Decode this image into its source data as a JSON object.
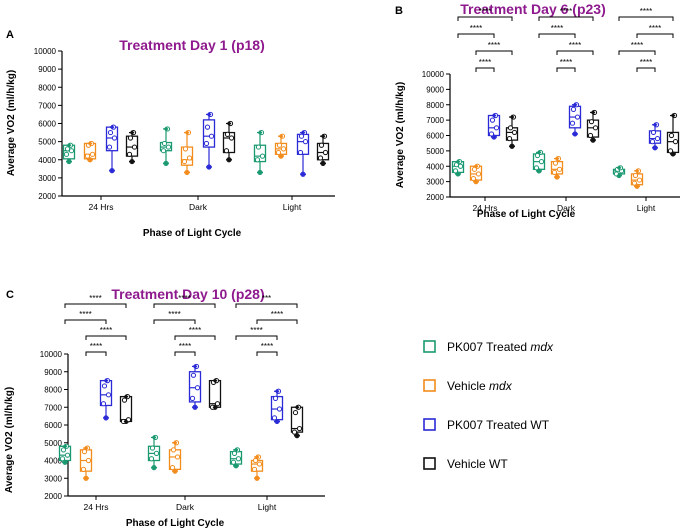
{
  "figure": {
    "legend": [
      {
        "label": "PK007 Treated ",
        "emph": "mdx",
        "color": "#1a9970"
      },
      {
        "label": "Vehicle ",
        "emph": "mdx",
        "color": "#f28c1c"
      },
      {
        "label": "PK007 Treated WT",
        "emph": "",
        "color": "#2a2ad6"
      },
      {
        "label": "Vehicle WT",
        "emph": "",
        "color": "#111111"
      }
    ]
  },
  "chart_data": [
    {
      "panel": "A",
      "type": "box",
      "title": "Treatment Day 1 (p18)",
      "xlabel": "Phase of Light Cycle",
      "ylabel": "Average VO2 (ml/h/kg)",
      "ylim": [
        2000,
        10000
      ],
      "yticks": [
        2000,
        3000,
        4000,
        5000,
        6000,
        7000,
        8000,
        9000,
        10000
      ],
      "categories": [
        "24 Hrs",
        "Dark",
        "Light"
      ],
      "series": [
        {
          "name": "PK007 Treated mdx",
          "boxes": [
            {
              "min": 3900,
              "q1": 4050,
              "median": 4500,
              "q3": 4800,
              "max": 4800,
              "points": [
                3900,
                4300,
                4500,
                4600,
                4800
              ]
            },
            {
              "min": 3800,
              "q1": 4500,
              "median": 4700,
              "q3": 4950,
              "max": 5700,
              "points": [
                3800,
                4500,
                4700,
                4900,
                5700
              ]
            },
            {
              "min": 3300,
              "q1": 3900,
              "median": 4200,
              "q3": 4800,
              "max": 5500,
              "points": [
                3300,
                4000,
                4200,
                4700,
                5500
              ]
            }
          ]
        },
        {
          "name": "Vehicle mdx",
          "boxes": [
            {
              "min": 4000,
              "q1": 4050,
              "median": 4300,
              "q3": 4900,
              "max": 4900,
              "points": [
                4000,
                4200,
                4300,
                4800,
                4900
              ]
            },
            {
              "min": 3300,
              "q1": 3700,
              "median": 4000,
              "q3": 4700,
              "max": 5500,
              "points": [
                3300,
                3900,
                4100,
                4600,
                5500
              ]
            },
            {
              "min": 4200,
              "q1": 4300,
              "median": 4600,
              "q3": 4900,
              "max": 5300,
              "points": [
                4200,
                4400,
                4600,
                4800,
                5300
              ]
            }
          ]
        },
        {
          "name": "PK007 Treated WT",
          "boxes": [
            {
              "min": 3400,
              "q1": 4500,
              "median": 5200,
              "q3": 5800,
              "max": 5800,
              "points": [
                3400,
                4700,
                5200,
                5500,
                5800
              ]
            },
            {
              "min": 3600,
              "q1": 4700,
              "median": 5300,
              "q3": 6200,
              "max": 6500,
              "points": [
                3600,
                4900,
                5300,
                5800,
                6500
              ]
            },
            {
              "min": 3200,
              "q1": 4300,
              "median": 5000,
              "q3": 5400,
              "max": 5500,
              "points": [
                3200,
                4400,
                5000,
                5300,
                5500
              ]
            }
          ]
        },
        {
          "name": "Vehicle WT",
          "boxes": [
            {
              "min": 3900,
              "q1": 4200,
              "median": 4700,
              "q3": 5300,
              "max": 5500,
              "points": [
                3900,
                4300,
                4700,
                5200,
                5500
              ]
            },
            {
              "min": 4000,
              "q1": 4400,
              "median": 5200,
              "q3": 5500,
              "max": 6000,
              "points": [
                4000,
                4500,
                5200,
                5400,
                6000
              ]
            },
            {
              "min": 3800,
              "q1": 4000,
              "median": 4400,
              "q3": 4900,
              "max": 5300,
              "points": [
                3800,
                4100,
                4400,
                4800,
                5300
              ]
            }
          ]
        }
      ],
      "significance": []
    },
    {
      "panel": "B",
      "type": "box",
      "title": "Treatment Day 6 (p23)",
      "xlabel": "Phase of Light Cycle",
      "ylabel": "Average VO2 (ml/h/kg)",
      "ylim": [
        2000,
        10000
      ],
      "yticks": [
        2000,
        3000,
        4000,
        5000,
        6000,
        7000,
        8000,
        9000,
        10000
      ],
      "categories": [
        "24 Hrs",
        "Dark",
        "Light"
      ],
      "series": [
        {
          "name": "PK007 Treated mdx",
          "boxes": [
            {
              "min": 3500,
              "q1": 3600,
              "median": 4000,
              "q3": 4300,
              "max": 4300,
              "points": [
                3500,
                3700,
                4000,
                4100,
                4300
              ]
            },
            {
              "min": 3700,
              "q1": 3800,
              "median": 4300,
              "q3": 4800,
              "max": 4900,
              "points": [
                3700,
                3900,
                4300,
                4700,
                4900
              ]
            },
            {
              "min": 3400,
              "q1": 3500,
              "median": 3700,
              "q3": 3800,
              "max": 3900,
              "points": [
                3400,
                3500,
                3700,
                3800,
                3900
              ]
            }
          ]
        },
        {
          "name": "Vehicle mdx",
          "boxes": [
            {
              "min": 3000,
              "q1": 3100,
              "median": 3500,
              "q3": 4000,
              "max": 4000,
              "points": [
                3000,
                3200,
                3500,
                3800,
                4000
              ]
            },
            {
              "min": 3300,
              "q1": 3500,
              "median": 3800,
              "q3": 4300,
              "max": 4500,
              "points": [
                3300,
                3600,
                3800,
                4200,
                4500
              ]
            },
            {
              "min": 2700,
              "q1": 2800,
              "median": 3100,
              "q3": 3500,
              "max": 3700,
              "points": [
                2700,
                2900,
                3100,
                3400,
                3700
              ]
            }
          ]
        },
        {
          "name": "PK007 Treated WT",
          "boxes": [
            {
              "min": 5900,
              "q1": 6000,
              "median": 6500,
              "q3": 7300,
              "max": 7300,
              "points": [
                5900,
                6100,
                6500,
                7000,
                7300
              ]
            },
            {
              "min": 6100,
              "q1": 6500,
              "median": 7200,
              "q3": 7900,
              "max": 8000,
              "points": [
                6100,
                6800,
                7200,
                7700,
                8000
              ]
            },
            {
              "min": 5200,
              "q1": 5500,
              "median": 5800,
              "q3": 6300,
              "max": 6700,
              "points": [
                5200,
                5600,
                5800,
                6200,
                6700
              ]
            }
          ]
        },
        {
          "name": "Vehicle WT",
          "boxes": [
            {
              "min": 5300,
              "q1": 5700,
              "median": 6200,
              "q3": 6500,
              "max": 7200,
              "points": [
                5300,
                5800,
                6200,
                6500,
                7200
              ]
            },
            {
              "min": 5700,
              "q1": 5900,
              "median": 6500,
              "q3": 7000,
              "max": 7500,
              "points": [
                5700,
                6000,
                6500,
                6900,
                7500
              ]
            },
            {
              "min": 4800,
              "q1": 4900,
              "median": 5600,
              "q3": 6200,
              "max": 7300,
              "points": [
                4800,
                5000,
                5600,
                6000,
                7300
              ]
            }
          ]
        }
      ],
      "significance": [
        {
          "group": 0,
          "from": 0,
          "to": 3,
          "level": 3,
          "label": "****"
        },
        {
          "group": 0,
          "from": 0,
          "to": 2,
          "level": 2,
          "label": "****"
        },
        {
          "group": 0,
          "from": 1,
          "to": 3,
          "level": 1,
          "label": "****"
        },
        {
          "group": 0,
          "from": 1,
          "to": 2,
          "level": 0,
          "label": "****"
        },
        {
          "group": 1,
          "from": 0,
          "to": 3,
          "level": 3,
          "label": "****"
        },
        {
          "group": 1,
          "from": 0,
          "to": 2,
          "level": 2,
          "label": "****"
        },
        {
          "group": 1,
          "from": 1,
          "to": 3,
          "level": 1,
          "label": "****"
        },
        {
          "group": 1,
          "from": 1,
          "to": 2,
          "level": 0,
          "label": "****"
        },
        {
          "group": 2,
          "from": 0,
          "to": 3,
          "level": 3,
          "label": "****"
        },
        {
          "group": 2,
          "from": 1,
          "to": 3,
          "level": 2,
          "label": "****"
        },
        {
          "group": 2,
          "from": 0,
          "to": 2,
          "level": 1,
          "label": "****"
        },
        {
          "group": 2,
          "from": 1,
          "to": 2,
          "level": 0,
          "label": "****"
        }
      ]
    },
    {
      "panel": "C",
      "type": "box",
      "title": "Treatment Day 10 (p28)",
      "xlabel": "Phase of Light Cycle",
      "ylabel": "Average VO2 (ml/h/kg)",
      "ylim": [
        2000,
        10000
      ],
      "yticks": [
        2000,
        3000,
        4000,
        5000,
        6000,
        7000,
        8000,
        9000,
        10000
      ],
      "categories": [
        "24 Hrs",
        "Dark",
        "Light"
      ],
      "series": [
        {
          "name": "PK007 Treated mdx",
          "boxes": [
            {
              "min": 3900,
              "q1": 4000,
              "median": 4300,
              "q3": 4800,
              "max": 4800,
              "points": [
                3900,
                4100,
                4300,
                4600,
                4800
              ]
            },
            {
              "min": 3600,
              "q1": 4000,
              "median": 4400,
              "q3": 4800,
              "max": 5300,
              "points": [
                3600,
                4100,
                4400,
                4700,
                5300
              ]
            },
            {
              "min": 3700,
              "q1": 3800,
              "median": 4100,
              "q3": 4500,
              "max": 4600,
              "points": [
                3700,
                3900,
                4100,
                4400,
                4600
              ]
            }
          ]
        },
        {
          "name": "Vehicle mdx",
          "boxes": [
            {
              "min": 3000,
              "q1": 3400,
              "median": 4000,
              "q3": 4600,
              "max": 4700,
              "points": [
                3000,
                3500,
                4000,
                4500,
                4700
              ]
            },
            {
              "min": 3400,
              "q1": 3500,
              "median": 4200,
              "q3": 4600,
              "max": 5000,
              "points": [
                3400,
                3600,
                4200,
                4600,
                5000
              ]
            },
            {
              "min": 3000,
              "q1": 3400,
              "median": 3800,
              "q3": 4000,
              "max": 4200,
              "points": [
                3000,
                3500,
                3800,
                4000,
                4200
              ]
            }
          ]
        },
        {
          "name": "PK007 Treated WT",
          "boxes": [
            {
              "min": 6400,
              "q1": 7100,
              "median": 7700,
              "q3": 8500,
              "max": 8500,
              "points": [
                6400,
                7200,
                7700,
                8200,
                8500
              ]
            },
            {
              "min": 7000,
              "q1": 7300,
              "median": 8100,
              "q3": 9000,
              "max": 9300,
              "points": [
                7000,
                7500,
                8100,
                8800,
                9300
              ]
            },
            {
              "min": 6200,
              "q1": 6300,
              "median": 6900,
              "q3": 7600,
              "max": 7900,
              "points": [
                6200,
                6400,
                6900,
                7500,
                7900
              ]
            }
          ]
        },
        {
          "name": "Vehicle WT",
          "boxes": [
            {
              "min": 6200,
              "q1": 6200,
              "median": 6300,
              "q3": 7600,
              "max": 7600,
              "points": [
                6200,
                6200,
                6300,
                7400,
                7600
              ]
            },
            {
              "min": 7000,
              "q1": 7000,
              "median": 7200,
              "q3": 8500,
              "max": 8500,
              "points": [
                7000,
                7000,
                7200,
                8400,
                8500
              ]
            },
            {
              "min": 5400,
              "q1": 5600,
              "median": 5800,
              "q3": 7000,
              "max": 7000,
              "points": [
                5400,
                5600,
                5800,
                6700,
                7000
              ]
            }
          ]
        }
      ],
      "significance": [
        {
          "group": 0,
          "from": 0,
          "to": 3,
          "level": 3,
          "label": "****"
        },
        {
          "group": 0,
          "from": 0,
          "to": 2,
          "level": 2,
          "label": "****"
        },
        {
          "group": 0,
          "from": 1,
          "to": 3,
          "level": 1,
          "label": "****"
        },
        {
          "group": 0,
          "from": 1,
          "to": 2,
          "level": 0,
          "label": "****"
        },
        {
          "group": 1,
          "from": 0,
          "to": 3,
          "level": 3,
          "label": "****"
        },
        {
          "group": 1,
          "from": 0,
          "to": 2,
          "level": 2,
          "label": "****"
        },
        {
          "group": 1,
          "from": 1,
          "to": 3,
          "level": 1,
          "label": "****"
        },
        {
          "group": 1,
          "from": 1,
          "to": 2,
          "level": 0,
          "label": "****"
        },
        {
          "group": 2,
          "from": 0,
          "to": 3,
          "level": 3,
          "label": "***"
        },
        {
          "group": 2,
          "from": 1,
          "to": 3,
          "level": 2,
          "label": "****"
        },
        {
          "group": 2,
          "from": 0,
          "to": 2,
          "level": 1,
          "label": "****"
        },
        {
          "group": 2,
          "from": 1,
          "to": 2,
          "level": 0,
          "label": "****"
        }
      ]
    }
  ]
}
